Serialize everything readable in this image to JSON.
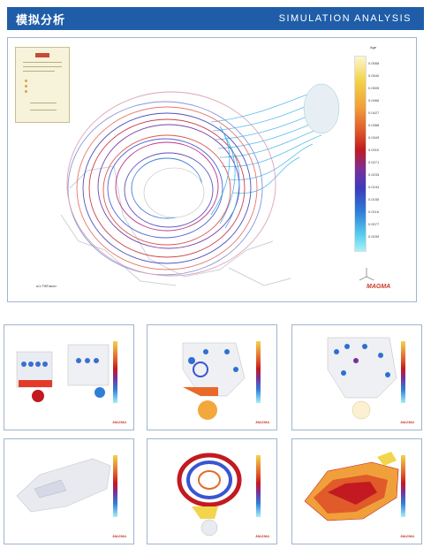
{
  "header": {
    "title_cn": "模拟分析",
    "title_en": "SIMULATION ANALYSIS"
  },
  "main": {
    "legend_ticks": [
      "0.0558",
      "0.0540",
      "0.0505",
      "0.0466",
      "0.0427",
      "0.0388",
      "0.0349",
      "0.0310",
      "0.0271",
      "0.0233",
      "0.0194",
      "0.0155",
      "0.0116",
      "0.0077",
      "0.0039"
    ],
    "legend_header": "Age",
    "brand": "MAGMA",
    "time_label": "s/1 FillTracer"
  },
  "thumbnails": [
    {
      "brand": "MAGMA"
    },
    {
      "brand": "MAGMA"
    },
    {
      "brand": "MAGMA"
    },
    {
      "brand": "MAGMA"
    },
    {
      "brand": "MAGMA"
    },
    {
      "brand": "MAGMA"
    }
  ],
  "colors": {
    "header_bg": "#1f5da8",
    "panel_border": "#9fb5cf",
    "brand_red": "#c83a2a"
  }
}
